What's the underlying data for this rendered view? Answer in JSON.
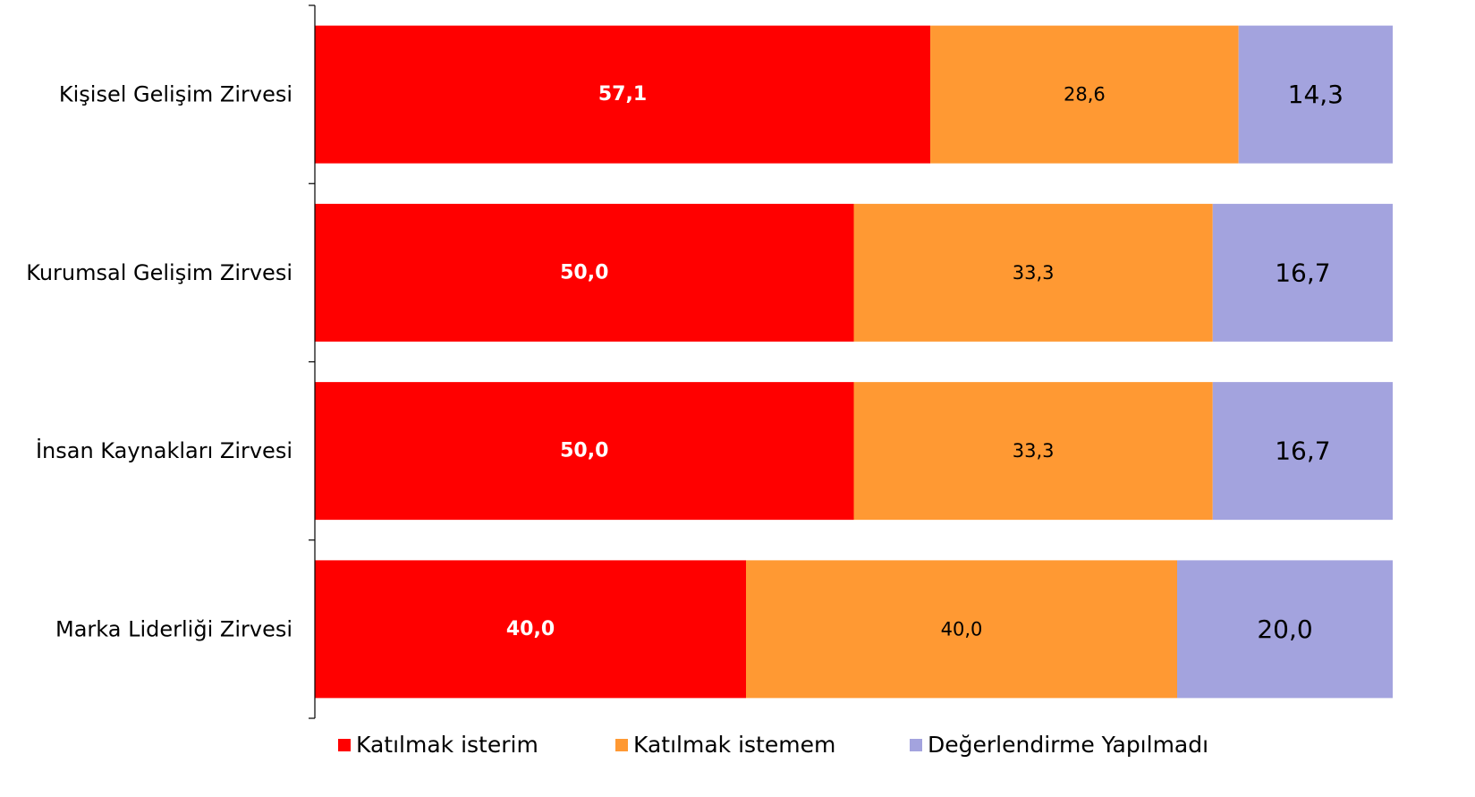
{
  "chart_data": {
    "type": "bar",
    "orientation": "horizontal",
    "stacked": "percent",
    "categories": [
      "Kişisel Gelişim Zirvesi",
      "Kurumsal Gelişim Zirvesi",
      "İnsan Kaynakları Zirvesi",
      "Marka Liderliği Zirvesi"
    ],
    "series": [
      {
        "name": "Katılmak isterim",
        "color": "#ff0000",
        "values": [
          57.1,
          50.0,
          50.0,
          40.0
        ],
        "labels": [
          "57,1",
          "50,0",
          "50,0",
          "40,0"
        ]
      },
      {
        "name": "Katılmak istemem",
        "color": "#ff9933",
        "values": [
          28.6,
          33.3,
          33.3,
          40.0
        ],
        "labels": [
          "28,6",
          "33,3",
          "33,3",
          "40,0"
        ]
      },
      {
        "name": "Değerlendirme Yapılmadı",
        "color": "#a3a3de",
        "values": [
          14.3,
          16.7,
          16.7,
          20.0
        ],
        "labels": [
          "14,3",
          "16,7",
          "16,7",
          "20,0"
        ]
      }
    ],
    "xlim": [
      0,
      100
    ],
    "grid": false,
    "legend": "bottom"
  }
}
